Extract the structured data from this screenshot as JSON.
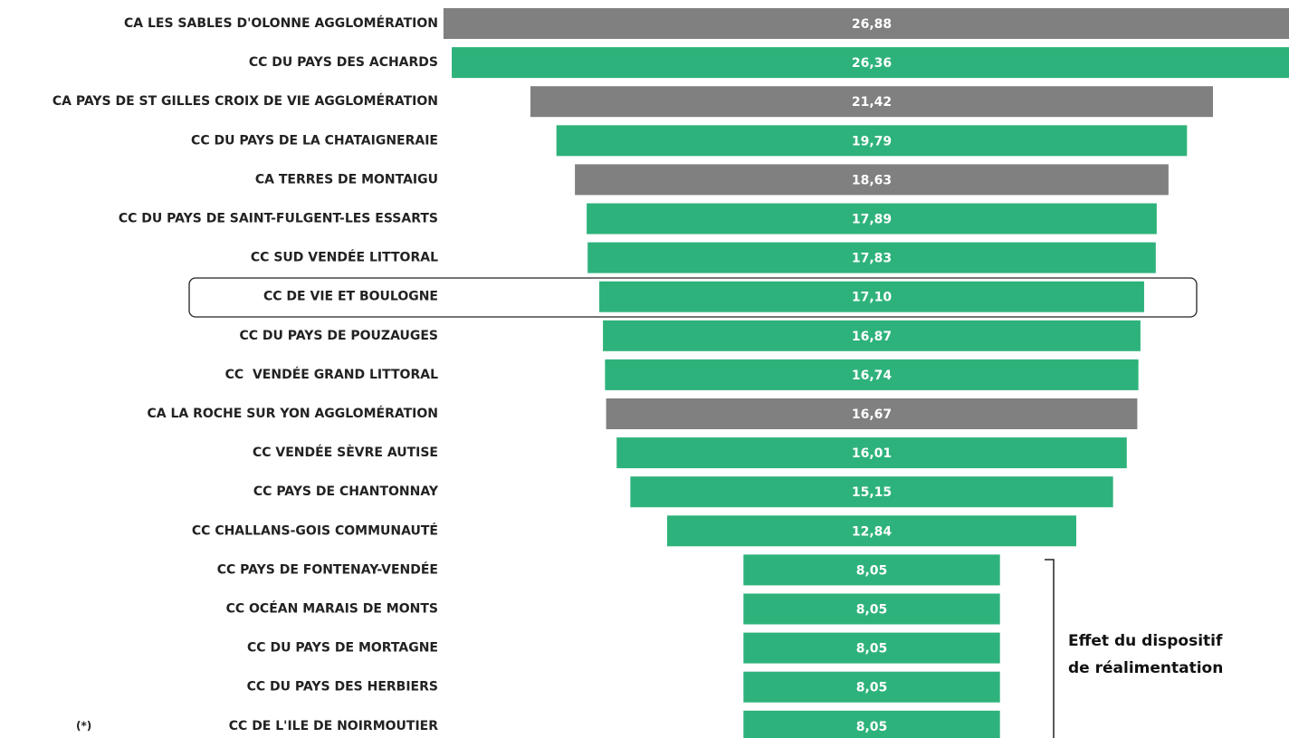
{
  "chart_data": {
    "type": "funnel",
    "categories": [
      "CA LES SABLES D'OLONNE AGGLOMÉRATION",
      "CC DU PAYS DES ACHARDS",
      "CA PAYS DE ST GILLES CROIX DE VIE AGGLOMÉRATION",
      "CC DU PAYS DE LA CHATAIGNERAIE",
      "CA TERRES DE MONTAIGU",
      "CC DU PAYS DE SAINT-FULGENT-LES ESSARTS",
      "CC SUD VENDÉE LITTORAL",
      "CC DE VIE ET BOULOGNE",
      "CC DU PAYS DE POUZAUGES",
      "CC  VENDÉE GRAND LITTORAL",
      "CA LA ROCHE SUR YON AGGLOMÉRATION",
      "CC VENDÉE SÈVRE AUTISE",
      "CC PAYS DE CHANTONNAY",
      "CC CHALLANS-GOIS COMMUNAUTÉ",
      "CC PAYS DE FONTENAY-VENDÉE",
      "CC OCÉAN MARAIS DE MONTS",
      "CC DU PAYS DE MORTAGNE",
      "CC DU PAYS DES HERBIERS",
      "CC DE L'ILE DE NOIRMOUTIER"
    ],
    "values": [
      26.88,
      26.36,
      21.42,
      19.79,
      18.63,
      17.89,
      17.83,
      17.1,
      16.87,
      16.74,
      16.67,
      16.01,
      15.15,
      12.84,
      8.05,
      8.05,
      8.05,
      8.05,
      8.05
    ],
    "value_labels": [
      "26,88",
      "26,36",
      "21,42",
      "19,79",
      "18,63",
      "17,89",
      "17,83",
      "17,10",
      "16,87",
      "16,74",
      "16,67",
      "16,01",
      "15,15",
      "12,84",
      "8,05",
      "8,05",
      "8,05",
      "8,05",
      "8,05"
    ],
    "colors": [
      "#808080",
      "#2eb27b",
      "#808080",
      "#2eb27b",
      "#808080",
      "#2eb27b",
      "#2eb27b",
      "#2eb27b",
      "#2eb27b",
      "#2eb27b",
      "#808080",
      "#2eb27b",
      "#2eb27b",
      "#2eb27b",
      "#2eb27b",
      "#2eb27b",
      "#2eb27b",
      "#2eb27b",
      "#2eb27b"
    ],
    "annotation": [
      "Effet du dispositif",
      "de réalimentation"
    ],
    "footnote": "(*)"
  }
}
